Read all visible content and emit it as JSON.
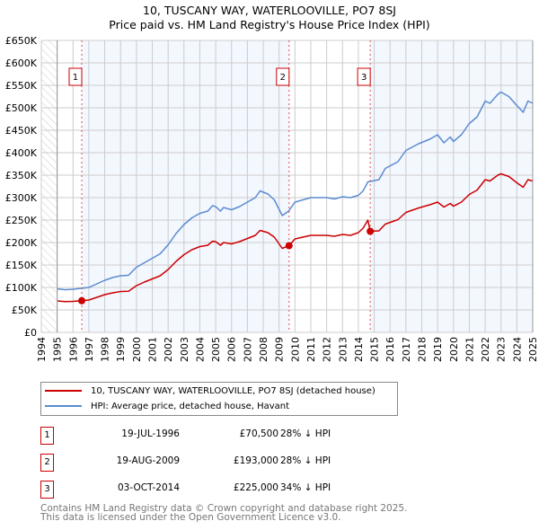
{
  "title_line1": "10, TUSCANY WAY, WATERLOOVILLE, PO7 8SJ",
  "title_line2": "Price paid vs. HM Land Registry's House Price Index (HPI)",
  "colors": {
    "property": "#cc0000",
    "hpi": "#5b8bd0",
    "shade": "#f3f7fe",
    "grid": "#cccccc"
  },
  "chart_data": {
    "type": "line",
    "title": "Price paid vs. HM Land Registry's House Price Index (HPI)",
    "xlim": [
      1994,
      2025
    ],
    "ylim": [
      0,
      650000
    ],
    "y_ticks": [
      0,
      50000,
      100000,
      150000,
      200000,
      250000,
      300000,
      350000,
      400000,
      450000,
      500000,
      550000,
      600000,
      650000
    ],
    "y_tick_labels": [
      "£0",
      "£50K",
      "£100K",
      "£150K",
      "£200K",
      "£250K",
      "£300K",
      "£350K",
      "£400K",
      "£450K",
      "£500K",
      "£550K",
      "£600K",
      "£650K"
    ],
    "x_ticks": [
      1994,
      1995,
      1996,
      1997,
      1998,
      1999,
      2000,
      2001,
      2002,
      2003,
      2004,
      2005,
      2006,
      2007,
      2008,
      2009,
      2010,
      2011,
      2012,
      2013,
      2014,
      2015,
      2016,
      2017,
      2018,
      2019,
      2020,
      2021,
      2022,
      2023,
      2024,
      2025
    ],
    "grid": true,
    "legend_position": "below",
    "series": [
      {
        "name": "HPI: Average price, detached house, Havant",
        "key": "hpi",
        "x": [
          1995,
          1995.5,
          1996,
          1996.5,
          1997,
          1997.5,
          1998,
          1998.5,
          1999,
          1999.5,
          2000,
          2000.5,
          2001,
          2001.5,
          2002,
          2002.5,
          2003,
          2003.5,
          2004,
          2004.5,
          2004.8,
          2005,
          2005.3,
          2005.5,
          2006,
          2006.5,
          2007,
          2007.5,
          2007.8,
          2008.3,
          2008.7,
          2009.2,
          2009.6,
          2010,
          2010.5,
          2011,
          2012,
          2012.5,
          2013,
          2013.5,
          2014,
          2014.3,
          2014.6,
          2015.3,
          2015.7,
          2016.5,
          2017,
          2017.8,
          2018.5,
          2019,
          2019.4,
          2019.8,
          2020,
          2020.5,
          2021,
          2021.5,
          2022,
          2022.3,
          2022.8,
          2023,
          2023.5,
          2024,
          2024.4,
          2024.7,
          2025
        ],
        "y": [
          97000,
          95000,
          96000,
          98000,
          100000,
          108000,
          116000,
          122000,
          126000,
          127000,
          145000,
          155000,
          165000,
          175000,
          195000,
          220000,
          240000,
          255000,
          265000,
          270000,
          282000,
          280000,
          270000,
          278000,
          273000,
          280000,
          290000,
          300000,
          315000,
          308000,
          295000,
          260000,
          270000,
          290000,
          295000,
          300000,
          300000,
          297000,
          302000,
          300000,
          305000,
          315000,
          335000,
          340000,
          365000,
          380000,
          405000,
          420000,
          430000,
          440000,
          422000,
          435000,
          425000,
          440000,
          465000,
          480000,
          515000,
          510000,
          530000,
          535000,
          525000,
          505000,
          490000,
          515000,
          510000
        ]
      },
      {
        "name": "10, TUSCANY WAY, WATERLOOVILLE, PO7 8SJ (detached house)",
        "key": "property",
        "x": [
          1995,
          1995.5,
          1996,
          1996.55,
          1997,
          1997.5,
          1998,
          1998.5,
          1999,
          1999.5,
          2000,
          2000.5,
          2001,
          2001.5,
          2002,
          2002.5,
          2003,
          2003.5,
          2004,
          2004.5,
          2004.8,
          2005,
          2005.3,
          2005.5,
          2006,
          2006.5,
          2007,
          2007.5,
          2007.8,
          2008.3,
          2008.7,
          2009.2,
          2009.63,
          2010,
          2010.5,
          2011,
          2012,
          2012.5,
          2013,
          2013.5,
          2014,
          2014.3,
          2014.6,
          2014.75,
          2015.3,
          2015.7,
          2016.5,
          2017,
          2017.8,
          2018.5,
          2019,
          2019.4,
          2019.8,
          2020,
          2020.5,
          2021,
          2021.5,
          2022,
          2022.3,
          2022.8,
          2023,
          2023.5,
          2024,
          2024.4,
          2024.7,
          2025
        ],
        "y": [
          70000,
          68500,
          69000,
          70500,
          72000,
          78000,
          84000,
          88000,
          91000,
          91500,
          104000,
          112000,
          119000,
          126000,
          140000,
          158000,
          173000,
          184000,
          191000,
          194000,
          203000,
          202000,
          194000,
          200000,
          197000,
          202000,
          209000,
          216000,
          227000,
          222000,
          212000,
          187000,
          193000,
          208000,
          212000,
          216000,
          216000,
          214000,
          218000,
          216000,
          222000,
          232000,
          250000,
          225000,
          226000,
          241000,
          251000,
          267000,
          277000,
          284000,
          290000,
          279000,
          287000,
          281000,
          290000,
          307000,
          317000,
          340000,
          337000,
          350000,
          353000,
          347000,
          333000,
          323000,
          340000,
          337000
        ]
      }
    ],
    "sales": [
      {
        "id": "1",
        "x": 1996.55,
        "price": 70500
      },
      {
        "id": "2",
        "x": 2009.63,
        "price": 193000
      },
      {
        "id": "3",
        "x": 2014.75,
        "price": 225000
      }
    ]
  },
  "legend": {
    "property": "10, TUSCANY WAY, WATERLOOVILLE, PO7 8SJ (detached house)",
    "hpi": "HPI: Average price, detached house, Havant"
  },
  "transactions": [
    {
      "id": "1",
      "date": "19-JUL-1996",
      "price": "£70,500",
      "hpi": "28% ↓ HPI"
    },
    {
      "id": "2",
      "date": "19-AUG-2009",
      "price": "£193,000",
      "hpi": "28% ↓ HPI"
    },
    {
      "id": "3",
      "date": "03-OCT-2014",
      "price": "£225,000",
      "hpi": "34% ↓ HPI"
    }
  ],
  "footer": {
    "line1": "Contains HM Land Registry data © Crown copyright and database right 2025.",
    "line2": "This data is licensed under the Open Government Licence v3.0."
  }
}
